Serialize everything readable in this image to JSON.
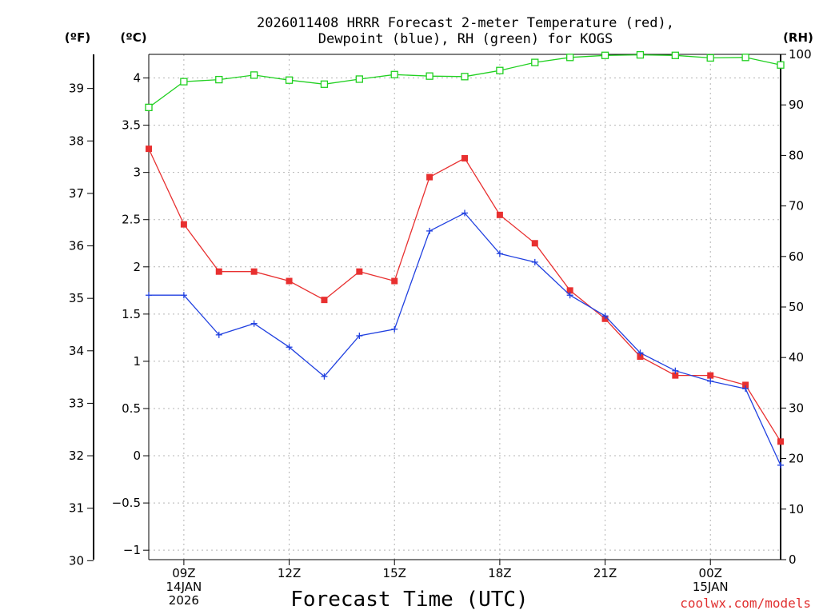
{
  "chart_data": {
    "type": "line",
    "title_lines": [
      "2026011408 HRRR Forecast 2-meter Temperature (red),",
      "Dewpoint (blue), RH (green) for KOGS"
    ],
    "xlabel": "Forecast Time (UTC)",
    "credit": "coolwx.com/models",
    "axis_units": {
      "fahrenheit": "(ºF)",
      "celsius": "(ºC)",
      "rh": "(RH)"
    },
    "x": [
      8,
      9,
      10,
      11,
      12,
      13,
      14,
      15,
      16,
      17,
      18,
      19,
      20,
      21,
      22,
      23,
      24,
      25,
      26
    ],
    "xlim": [
      8,
      26
    ],
    "x_ticks": [
      {
        "x": 9,
        "lines": [
          "09Z",
          "14JAN",
          "2026"
        ]
      },
      {
        "x": 12,
        "lines": [
          "12Z"
        ]
      },
      {
        "x": 15,
        "lines": [
          "15Z"
        ]
      },
      {
        "x": 18,
        "lines": [
          "18Z"
        ]
      },
      {
        "x": 21,
        "lines": [
          "21Z"
        ]
      },
      {
        "x": 24,
        "lines": [
          "00Z",
          "15JAN"
        ]
      }
    ],
    "ylim_celsius": [
      -1.1,
      4.25
    ],
    "ylim_fahrenheit": [
      30.02,
      39.65
    ],
    "ylim_rh": [
      0,
      100
    ],
    "y_ticks_celsius": [
      "-1",
      "-0.5",
      "0",
      "0.5",
      "1",
      "1.5",
      "2",
      "2.5",
      "3",
      "3.5",
      "4"
    ],
    "y_ticks_fahrenheit": [
      "30",
      "31",
      "32",
      "33",
      "34",
      "35",
      "36",
      "37",
      "38",
      "39"
    ],
    "y_ticks_rh": [
      "0",
      "10",
      "20",
      "30",
      "40",
      "50",
      "60",
      "70",
      "80",
      "90",
      "100"
    ],
    "series": [
      {
        "name": "Temperature",
        "axis": "celsius",
        "color": "#e83030",
        "marker": "filled-square",
        "values": [
          3.25,
          2.45,
          1.95,
          1.95,
          1.85,
          1.65,
          1.95,
          1.85,
          2.95,
          3.15,
          2.55,
          2.25,
          1.75,
          1.45,
          1.05,
          0.85,
          0.85,
          0.75,
          0.15
        ]
      },
      {
        "name": "Dewpoint",
        "axis": "celsius",
        "color": "#2040e0",
        "marker": "plus",
        "values": [
          1.7,
          1.7,
          1.28,
          1.4,
          1.15,
          0.84,
          1.27,
          1.34,
          2.38,
          2.57,
          2.14,
          2.05,
          1.7,
          1.48,
          1.09,
          0.9,
          0.79,
          0.71,
          -0.1
        ]
      },
      {
        "name": "RH",
        "axis": "rh",
        "color": "#20d020",
        "marker": "open-square",
        "values": [
          89.5,
          94.6,
          95.0,
          95.9,
          94.9,
          94.1,
          95.1,
          96.0,
          95.7,
          95.6,
          96.8,
          98.4,
          99.4,
          99.8,
          99.9,
          99.8,
          99.3,
          99.4,
          97.9
        ]
      }
    ]
  }
}
